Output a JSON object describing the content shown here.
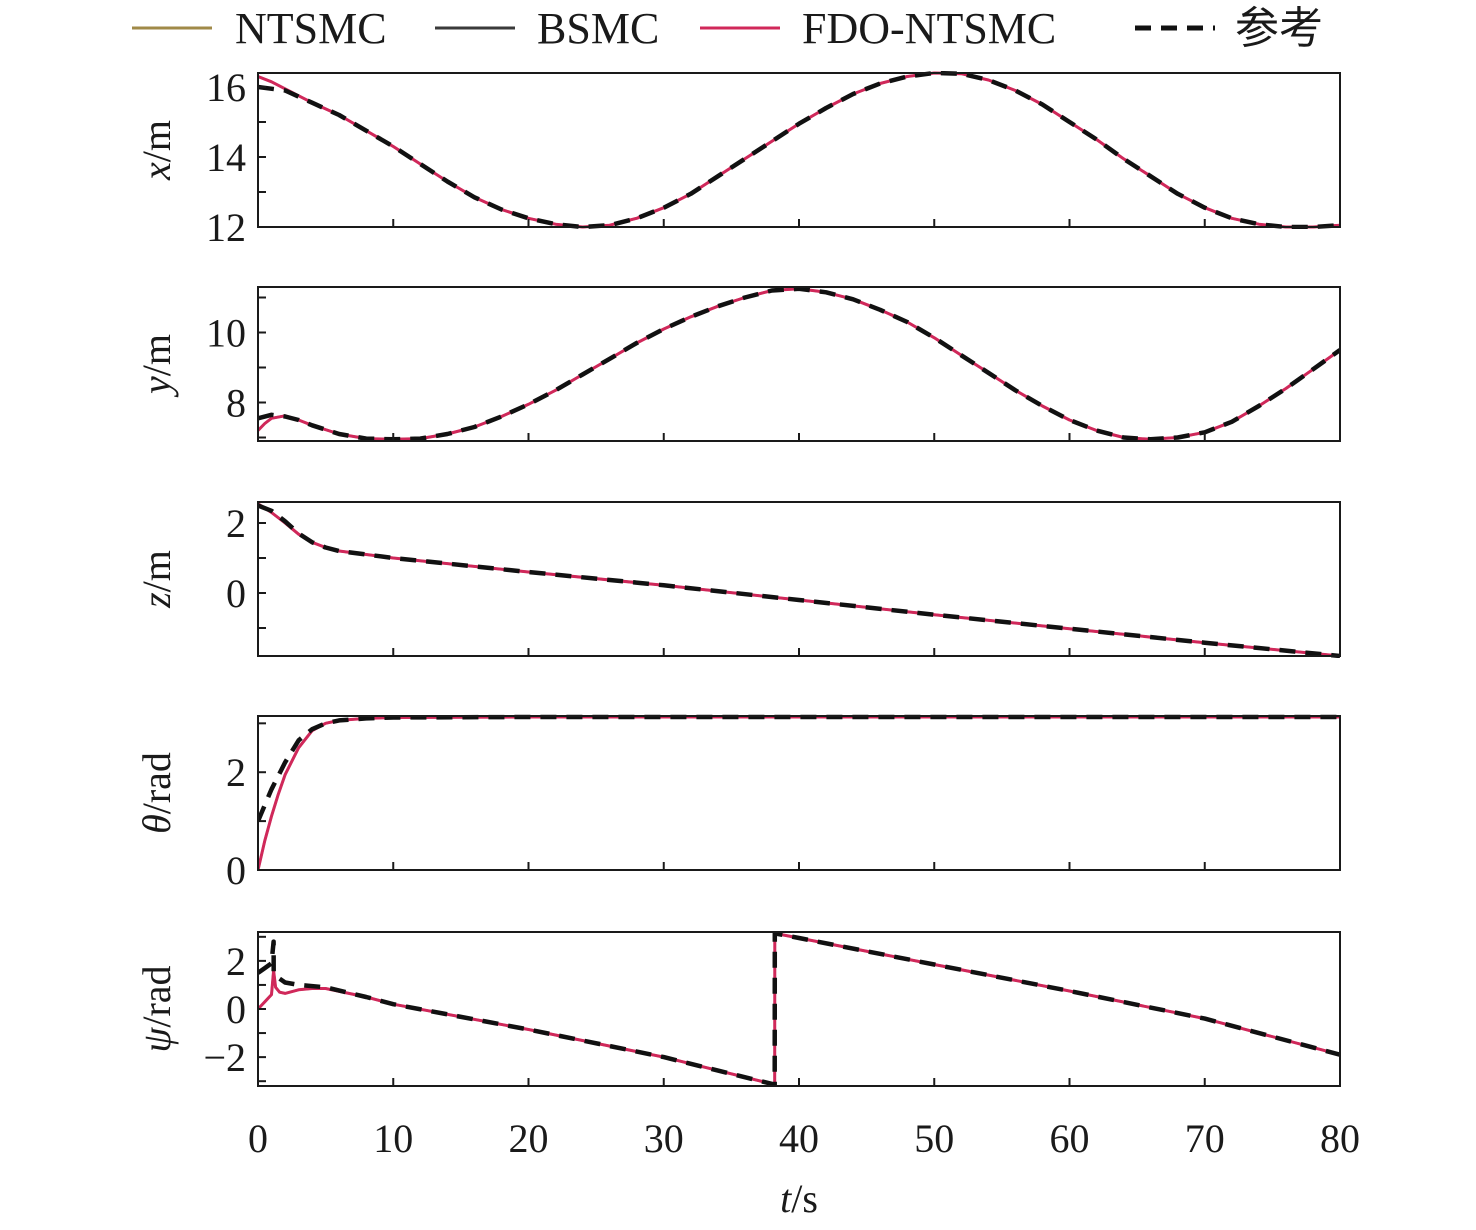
{
  "legend": [
    {
      "label": "NTSMC",
      "color": "#a08a48",
      "dash": "solid"
    },
    {
      "label": "BSMC",
      "color": "#3a3a3a",
      "dash": "solid"
    },
    {
      "label": "FDO-NTSMC",
      "color": "#d0285a",
      "dash": "solid"
    },
    {
      "label": "参考",
      "color": "#111111",
      "dash": "dashed"
    }
  ],
  "chart_data": [
    {
      "type": "line",
      "ylabel_var": "x",
      "ylabel_unit": "/m",
      "xlim": [
        0,
        80
      ],
      "ylim": [
        12,
        16.4
      ],
      "yticks": [
        12,
        14,
        16
      ],
      "xticks": [
        0,
        10,
        20,
        30,
        40,
        50,
        60,
        70,
        80
      ],
      "series": [
        {
          "name": "参考",
          "x": [
            0,
            2,
            4,
            6,
            8,
            10,
            12,
            14,
            16,
            18,
            20,
            22,
            24,
            26,
            28,
            30,
            32,
            34,
            36,
            38,
            40,
            42,
            44,
            46,
            48,
            50,
            52,
            54,
            56,
            58,
            60,
            62,
            64,
            66,
            68,
            70,
            72,
            74,
            76,
            78,
            80
          ],
          "y": [
            16,
            15.9,
            15.55,
            15.2,
            14.75,
            14.3,
            13.8,
            13.3,
            12.85,
            12.5,
            12.25,
            12.08,
            12.0,
            12.05,
            12.25,
            12.55,
            12.95,
            13.45,
            13.95,
            14.45,
            14.95,
            15.4,
            15.8,
            16.1,
            16.3,
            16.4,
            16.38,
            16.2,
            15.9,
            15.5,
            15.0,
            14.5,
            13.95,
            13.45,
            12.95,
            12.55,
            12.25,
            12.08,
            12.0,
            12.0,
            12.05
          ]
        },
        {
          "name": "FDO-NTSMC",
          "x": [
            0,
            1,
            2,
            4,
            6,
            8,
            10,
            12,
            14,
            16,
            18,
            20,
            22,
            24,
            26,
            28,
            30,
            32,
            34,
            36,
            38,
            40,
            42,
            44,
            46,
            48,
            50,
            52,
            54,
            56,
            58,
            60,
            62,
            64,
            66,
            68,
            70,
            72,
            74,
            76,
            78,
            80
          ],
          "y": [
            16.3,
            16.15,
            15.95,
            15.55,
            15.2,
            14.75,
            14.3,
            13.8,
            13.3,
            12.85,
            12.5,
            12.25,
            12.08,
            12.0,
            12.05,
            12.25,
            12.55,
            12.95,
            13.45,
            13.95,
            14.45,
            14.95,
            15.4,
            15.8,
            16.1,
            16.3,
            16.4,
            16.38,
            16.2,
            15.9,
            15.5,
            15.0,
            14.5,
            13.95,
            13.45,
            12.95,
            12.55,
            12.25,
            12.08,
            12.0,
            12.0,
            12.05
          ]
        }
      ]
    },
    {
      "type": "line",
      "ylabel_var": "y",
      "ylabel_unit": "/m",
      "xlim": [
        0,
        80
      ],
      "ylim": [
        6.9,
        11.3
      ],
      "yticks": [
        8,
        10
      ],
      "xticks": [
        0,
        10,
        20,
        30,
        40,
        50,
        60,
        70,
        80
      ],
      "series": [
        {
          "name": "参考",
          "x": [
            0,
            1,
            2,
            3,
            4,
            6,
            8,
            10,
            12,
            14,
            16,
            18,
            20,
            22,
            24,
            26,
            28,
            30,
            32,
            34,
            36,
            38,
            40,
            42,
            44,
            46,
            48,
            50,
            52,
            54,
            56,
            58,
            60,
            62,
            64,
            66,
            68,
            70,
            72,
            74,
            76,
            78,
            80
          ],
          "y": [
            7.55,
            7.65,
            7.6,
            7.5,
            7.35,
            7.1,
            6.97,
            6.95,
            6.97,
            7.1,
            7.3,
            7.6,
            7.95,
            8.35,
            8.8,
            9.25,
            9.7,
            10.1,
            10.45,
            10.75,
            11.0,
            11.2,
            11.25,
            11.15,
            10.95,
            10.65,
            10.3,
            9.85,
            9.35,
            8.85,
            8.35,
            7.9,
            7.5,
            7.2,
            7.0,
            6.95,
            7.0,
            7.15,
            7.45,
            7.9,
            8.4,
            8.95,
            9.5
          ]
        },
        {
          "name": "FDO-NTSMC",
          "x": [
            0,
            0.5,
            1,
            2,
            3,
            4,
            6,
            8,
            10,
            12,
            14,
            16,
            18,
            20,
            22,
            24,
            26,
            28,
            30,
            32,
            34,
            36,
            38,
            40,
            42,
            44,
            46,
            48,
            50,
            52,
            54,
            56,
            58,
            60,
            62,
            64,
            66,
            68,
            70,
            72,
            74,
            76,
            78,
            80
          ],
          "y": [
            7.2,
            7.4,
            7.55,
            7.62,
            7.5,
            7.35,
            7.1,
            6.97,
            6.95,
            6.97,
            7.1,
            7.3,
            7.6,
            7.95,
            8.35,
            8.8,
            9.25,
            9.7,
            10.1,
            10.45,
            10.75,
            11.0,
            11.2,
            11.25,
            11.15,
            10.95,
            10.65,
            10.3,
            9.85,
            9.35,
            8.85,
            8.35,
            7.9,
            7.5,
            7.2,
            7.0,
            6.95,
            7.0,
            7.15,
            7.45,
            7.9,
            8.4,
            8.95,
            9.5
          ]
        }
      ]
    },
    {
      "type": "line",
      "ylabel_var": "z",
      "ylabel_unit": "/m",
      "xlim": [
        0,
        80
      ],
      "ylim": [
        -1.8,
        2.6
      ],
      "yticks": [
        0,
        2
      ],
      "xticks": [
        0,
        10,
        20,
        30,
        40,
        50,
        60,
        70,
        80
      ],
      "series": [
        {
          "name": "参考",
          "x": [
            0,
            1,
            2,
            3,
            4,
            5,
            6,
            8,
            10,
            20,
            30,
            40,
            50,
            60,
            70,
            80
          ],
          "y": [
            2.5,
            2.35,
            2.05,
            1.7,
            1.45,
            1.3,
            1.2,
            1.1,
            1.0,
            0.6,
            0.22,
            -0.2,
            -0.62,
            -1.02,
            -1.42,
            -1.8
          ]
        },
        {
          "name": "FDO-NTSMC",
          "x": [
            0,
            1,
            2,
            3,
            4,
            5,
            6,
            8,
            10,
            20,
            30,
            40,
            50,
            60,
            70,
            80
          ],
          "y": [
            2.55,
            2.3,
            2.0,
            1.68,
            1.45,
            1.3,
            1.2,
            1.1,
            1.0,
            0.6,
            0.22,
            -0.2,
            -0.62,
            -1.02,
            -1.42,
            -1.8
          ]
        }
      ]
    },
    {
      "type": "line",
      "ylabel_var": "θ",
      "ylabel_unit": "/rad",
      "xlim": [
        0,
        80
      ],
      "ylim": [
        0,
        3.15
      ],
      "yticks": [
        0,
        2
      ],
      "xticks": [
        0,
        10,
        20,
        30,
        40,
        50,
        60,
        70,
        80
      ],
      "series": [
        {
          "name": "参考",
          "x": [
            0,
            1,
            2,
            3,
            4,
            5,
            6,
            8,
            10,
            20,
            40,
            80
          ],
          "y": [
            1.0,
            1.65,
            2.2,
            2.65,
            2.88,
            3.0,
            3.06,
            3.1,
            3.12,
            3.13,
            3.13,
            3.13
          ]
        },
        {
          "name": "FDO-NTSMC",
          "x": [
            0,
            0.5,
            1,
            1.5,
            2,
            3,
            4,
            5,
            6,
            8,
            10,
            20,
            40,
            80
          ],
          "y": [
            0.0,
            0.6,
            1.1,
            1.55,
            1.95,
            2.5,
            2.85,
            3.0,
            3.06,
            3.1,
            3.12,
            3.13,
            3.13,
            3.13
          ]
        }
      ]
    },
    {
      "type": "line",
      "ylabel_var": "ψ",
      "ylabel_unit": "/rad",
      "xlim": [
        0,
        80
      ],
      "ylim": [
        -3.2,
        3.2
      ],
      "yticks": [
        -2,
        0,
        2
      ],
      "xticks": [
        0,
        10,
        20,
        30,
        40,
        50,
        60,
        70,
        80
      ],
      "series": [
        {
          "name": "参考",
          "x": [
            0,
            0.5,
            1.0,
            1.15,
            1.16,
            1.5,
            2,
            3,
            4,
            5,
            8,
            10,
            20,
            30,
            38.2,
            38.21,
            40,
            50,
            60,
            70,
            80
          ],
          "y": [
            1.5,
            1.7,
            1.9,
            2.8,
            1.5,
            1.3,
            1.1,
            1.0,
            0.95,
            0.9,
            0.5,
            0.2,
            -0.85,
            -2.0,
            -3.14,
            3.14,
            2.95,
            1.85,
            0.75,
            -0.4,
            -1.9
          ]
        },
        {
          "name": "FDO-NTSMC",
          "x": [
            0,
            0.5,
            1.0,
            1.15,
            1.3,
            1.6,
            2,
            3,
            4,
            5,
            8,
            10,
            20,
            30,
            38.2,
            38.21,
            40,
            50,
            60,
            70,
            80
          ],
          "y": [
            0.0,
            0.3,
            0.6,
            1.6,
            0.9,
            0.7,
            0.65,
            0.8,
            0.85,
            0.85,
            0.5,
            0.2,
            -0.85,
            -2.0,
            -3.14,
            3.14,
            2.95,
            1.85,
            0.75,
            -0.4,
            -1.9
          ]
        }
      ]
    }
  ],
  "xaxis": {
    "var": "t",
    "unit": "/s"
  }
}
